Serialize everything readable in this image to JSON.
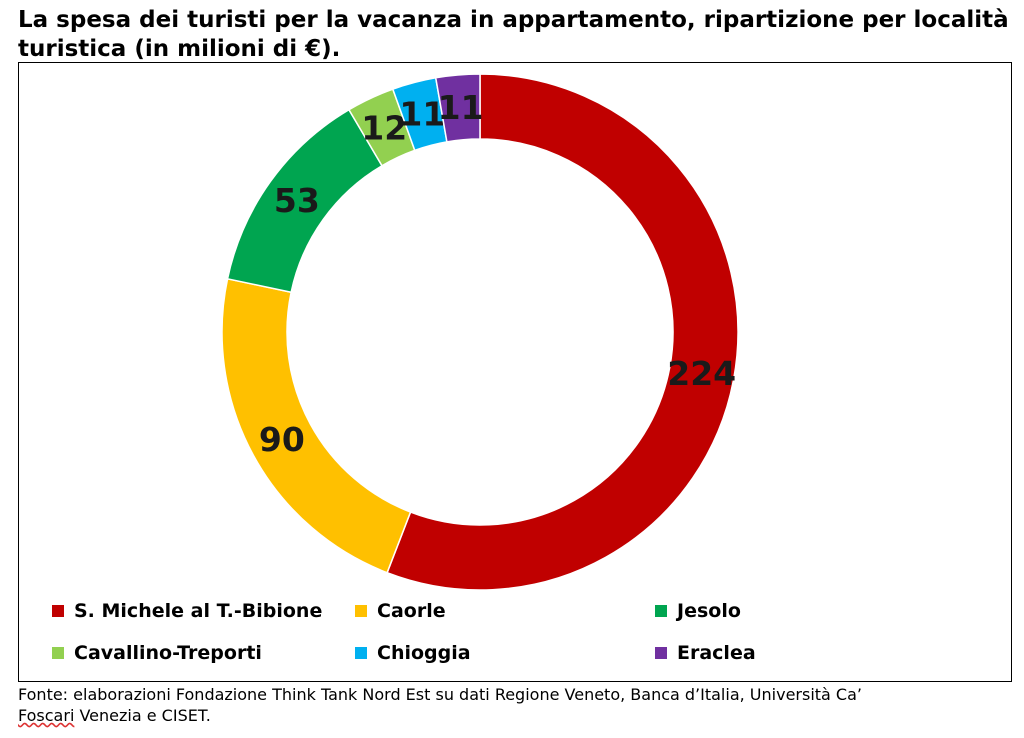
{
  "header": {
    "title": "La spesa dei turisti per la vacanza in appartamento, ripartizione per località turistica (in milioni di €)."
  },
  "chart_data": {
    "type": "donut",
    "title": "La spesa dei turisti per la vacanza in appartamento, ripartizione per località turistica (in milioni di €).",
    "unit": "milioni di €",
    "slices": [
      {
        "label": "S. Michele al T.-Bibione",
        "value": 224,
        "color": "#c00000"
      },
      {
        "label": "Caorle",
        "value": 90,
        "color": "#ffc000"
      },
      {
        "label": "Jesolo",
        "value": 53,
        "color": "#00a550"
      },
      {
        "label": "Cavallino-Treporti",
        "value": 12,
        "color": "#92d050"
      },
      {
        "label": "Chioggia",
        "value": 11,
        "color": "#00b0f0"
      },
      {
        "label": "Eraclea",
        "value": 11,
        "color": "#7030a0"
      }
    ],
    "legend_position": "bottom"
  },
  "legend": {
    "items": [
      {
        "label": "S. Michele al T.-Bibione",
        "color": "#c00000"
      },
      {
        "label": "Caorle",
        "color": "#ffc000"
      },
      {
        "label": "Jesolo",
        "color": "#00a550"
      },
      {
        "label": "Cavallino-Treporti",
        "color": "#92d050"
      },
      {
        "label": "Chioggia",
        "color": "#00b0f0"
      },
      {
        "label": "Eraclea",
        "color": "#7030a0"
      }
    ]
  },
  "footer": {
    "source_line1": "Fonte: elaborazioni Fondazione Think Tank Nord Est su dati Regione Veneto, Banca d’Italia, Università Ca’",
    "source_word_underlined": "Foscari",
    "source_line2_rest": " Venezia e CISET."
  }
}
